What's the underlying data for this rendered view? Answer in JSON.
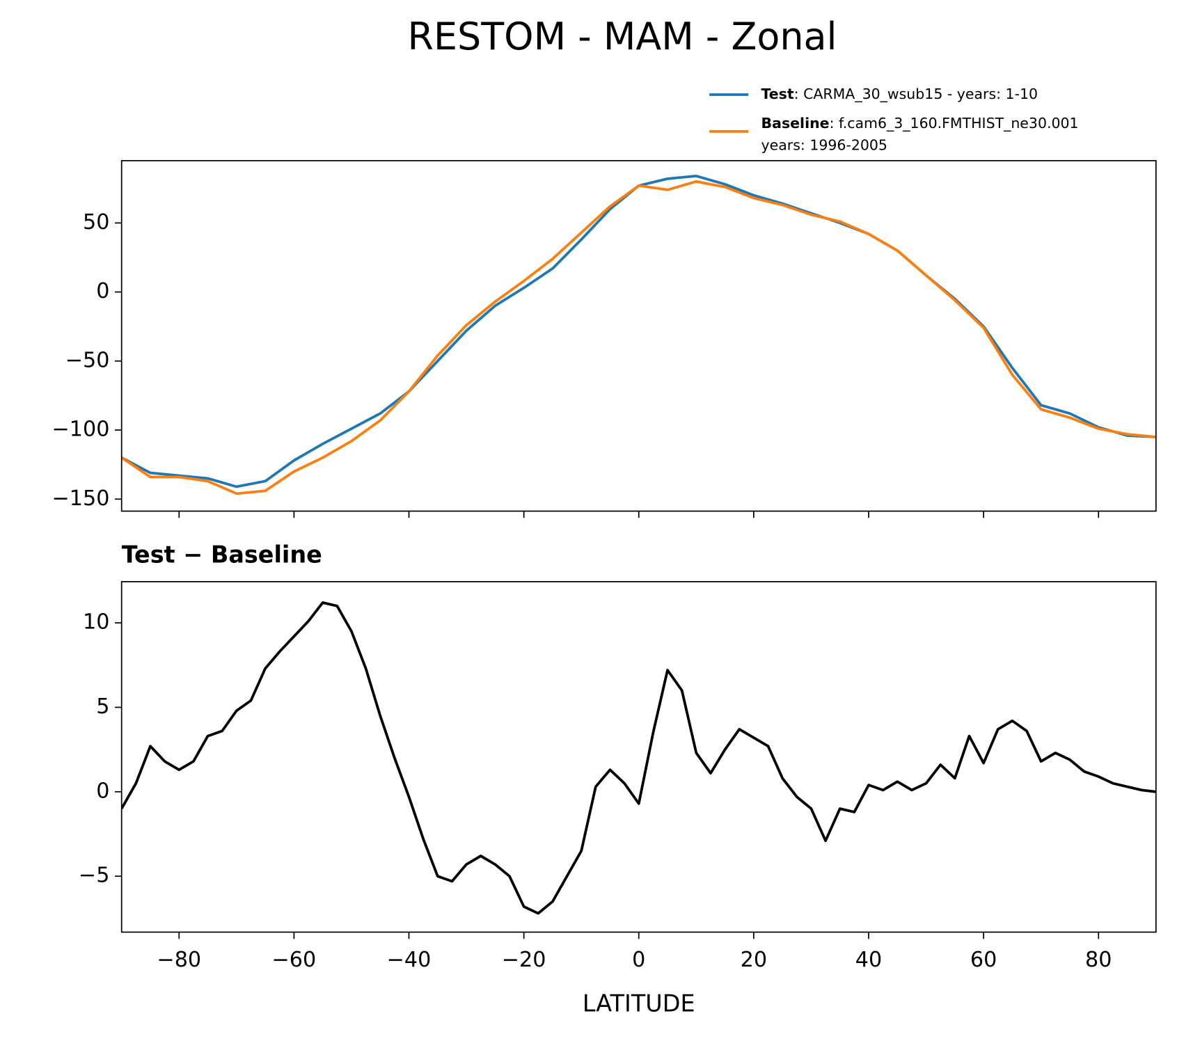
{
  "chart_data": [
    {
      "type": "line",
      "title": "RESTOM - MAM - Zonal",
      "x": [
        -90,
        -85,
        -80,
        -75,
        -70,
        -65,
        -60,
        -55,
        -50,
        -45,
        -40,
        -35,
        -30,
        -25,
        -20,
        -15,
        -10,
        -5,
        0,
        5,
        10,
        15,
        20,
        25,
        30,
        35,
        40,
        45,
        50,
        55,
        60,
        65,
        70,
        75,
        80,
        85,
        90
      ],
      "series": [
        {
          "name": "Test",
          "description": [
            ": CARMA_30_wsub15 - years: 1-10"
          ],
          "color": "#1f77b4",
          "values": [
            -120,
            -131,
            -133,
            -135,
            -141,
            -137,
            -122,
            -110,
            -99,
            -88,
            -72,
            -50,
            -28,
            -10,
            3,
            17,
            38,
            60,
            77,
            82,
            84,
            78,
            70,
            64,
            57,
            50,
            42,
            30,
            12,
            -5,
            -25,
            -55,
            -82,
            -88,
            -98,
            -104,
            -105
          ]
        },
        {
          "name": "Baseline",
          "description": [
            ": f.cam6_3_160.FMTHIST_ne30.001",
            "years: 1996-2005"
          ],
          "color": "#ff7f0e",
          "values": [
            -120,
            -134,
            -134,
            -137,
            -146,
            -144,
            -130,
            -120,
            -108,
            -93,
            -72,
            -46,
            -24,
            -7,
            8,
            24,
            43,
            62,
            77,
            74,
            80,
            76,
            68,
            63,
            56,
            51,
            42,
            30,
            12,
            -6,
            -26,
            -60,
            -85,
            -91,
            -99,
            -103,
            -105
          ]
        }
      ],
      "xlim": [
        -90,
        90
      ],
      "xticks": [
        -80,
        -60,
        -40,
        -20,
        0,
        20,
        40,
        60,
        80
      ],
      "ylim": [
        -158.7,
        95.1
      ],
      "yticks": [
        {
          "value": -150,
          "label": "−150"
        },
        {
          "value": -100,
          "label": "−100"
        },
        {
          "value": -50,
          "label": "−50"
        },
        0,
        50
      ]
    },
    {
      "type": "line",
      "title": "Test − Baseline",
      "x_label": "LATITUDE",
      "x": [
        -90,
        -87.5,
        -85,
        -82.5,
        -80,
        -77.5,
        -75,
        -72.5,
        -70,
        -67.5,
        -65,
        -62.5,
        -60,
        -57.5,
        -55,
        -52.5,
        -50,
        -47.5,
        -45,
        -42.5,
        -40,
        -37.5,
        -35,
        -32.5,
        -30,
        -27.5,
        -25,
        -22.5,
        -20,
        -17.5,
        -15,
        -12.5,
        -10,
        -7.5,
        -5,
        -2.5,
        0,
        2.5,
        5,
        7.5,
        10,
        12.5,
        15,
        17.5,
        20,
        22.5,
        25,
        27.5,
        30,
        32.5,
        35,
        37.5,
        40,
        42.5,
        45,
        47.5,
        50,
        52.5,
        55,
        57.5,
        60,
        62.5,
        65,
        67.5,
        70,
        72.5,
        75,
        77.5,
        80,
        82.5,
        85,
        87.5,
        90
      ],
      "series": [
        {
          "color": "#000000",
          "values": [
            -1.0,
            0.5,
            2.7,
            1.8,
            1.3,
            1.8,
            3.3,
            3.6,
            4.8,
            5.4,
            7.3,
            8.3,
            9.2,
            10.1,
            11.2,
            11.0,
            9.5,
            7.3,
            4.5,
            2.0,
            -0.3,
            -2.8,
            -5.0,
            -5.3,
            -4.3,
            -3.8,
            -4.3,
            -5.0,
            -6.8,
            -7.2,
            -6.5,
            -5.0,
            -3.5,
            0.3,
            1.3,
            0.5,
            -0.7,
            3.5,
            7.2,
            6.0,
            2.3,
            1.1,
            2.5,
            3.7,
            3.2,
            2.7,
            0.8,
            -0.3,
            -1.0,
            -2.9,
            -1.0,
            -1.2,
            0.4,
            0.1,
            0.6,
            0.1,
            0.5,
            1.6,
            0.8,
            3.3,
            1.7,
            3.7,
            4.2,
            3.6,
            1.8,
            2.3,
            1.9,
            1.2,
            0.9,
            0.5,
            0.3,
            0.1,
            0.0
          ]
        }
      ],
      "xlim": [
        -90,
        90
      ],
      "xticks": [
        {
          "value": -80,
          "label": "−80"
        },
        {
          "value": -60,
          "label": "−60"
        },
        {
          "value": -40,
          "label": "−40"
        },
        {
          "value": -20,
          "label": "−20"
        },
        0,
        20,
        40,
        60,
        80
      ],
      "ylim": [
        -8.31,
        12.44
      ],
      "yticks": [
        {
          "value": -5,
          "label": "−5"
        },
        0,
        5,
        10
      ]
    }
  ]
}
